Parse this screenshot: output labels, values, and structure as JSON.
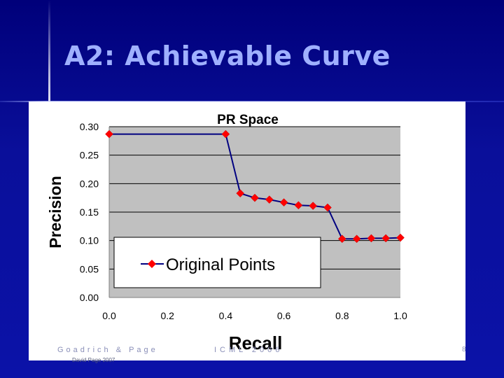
{
  "slide": {
    "title": "A2: Achievable Curve",
    "footer_left": "Goadrich & Page",
    "footer_left2": "David Page 2007",
    "footer_center": "ICML 2006",
    "page_number": "8"
  },
  "chart_data": {
    "type": "line",
    "title": "PR Space",
    "xlabel": "Recall",
    "ylabel": "Precision",
    "xlim": [
      0.0,
      1.0
    ],
    "ylim": [
      0.0,
      0.3
    ],
    "xticks": [
      "0.0",
      "0.2",
      "0.4",
      "0.6",
      "0.8",
      "1.0"
    ],
    "yticks": [
      "0.00",
      "0.05",
      "0.10",
      "0.15",
      "0.20",
      "0.25",
      "0.30"
    ],
    "grid": true,
    "legend": "bottom-left",
    "marker_color": "#ff0000",
    "line_color": "#000080",
    "plot_background": "#c0c0c0",
    "series": [
      {
        "name": "Original Points",
        "x": [
          0.0,
          0.4,
          0.45,
          0.5,
          0.55,
          0.6,
          0.65,
          0.7,
          0.75,
          0.8,
          0.85,
          0.9,
          0.95,
          1.0
        ],
        "y": [
          0.287,
          0.287,
          0.183,
          0.175,
          0.172,
          0.167,
          0.162,
          0.161,
          0.158,
          0.103,
          0.103,
          0.104,
          0.104,
          0.105
        ]
      }
    ]
  }
}
